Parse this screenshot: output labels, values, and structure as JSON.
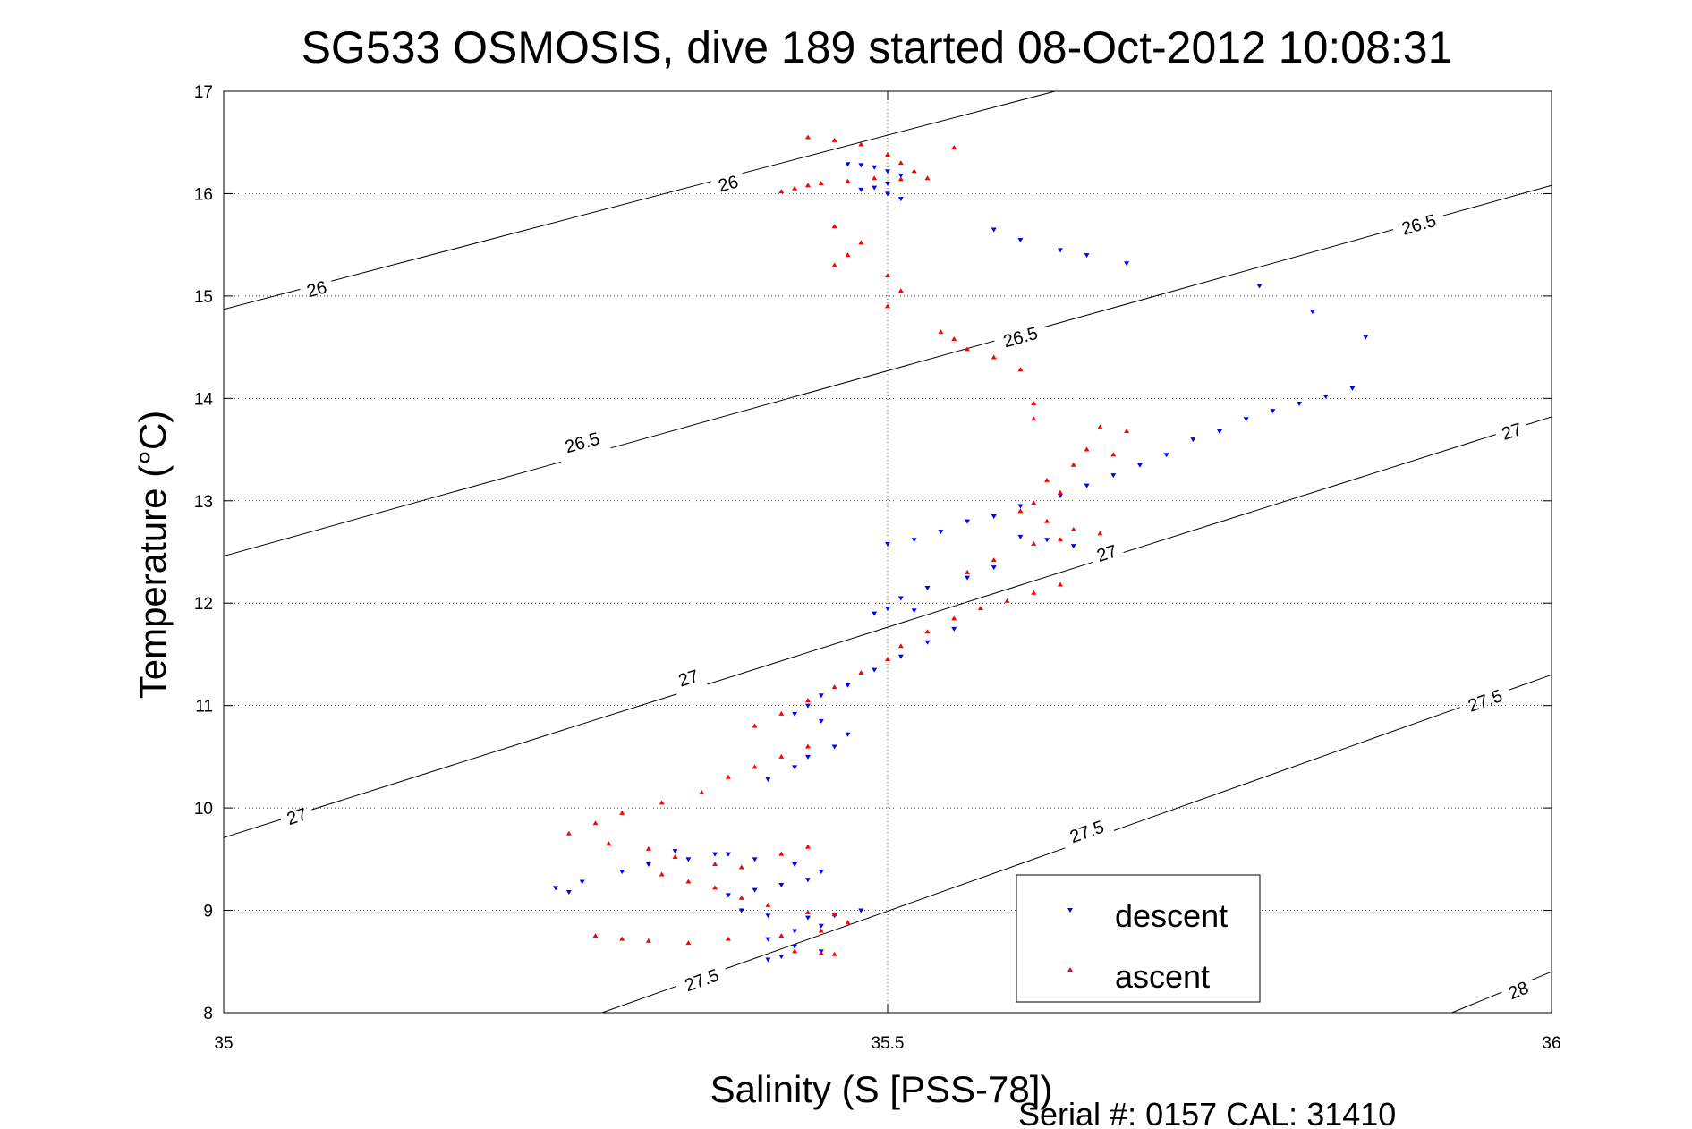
{
  "chart_data": {
    "type": "scatter",
    "title": "SG533 OSMOSIS, dive 189 started 08-Oct-2012 10:08:31",
    "xlabel": "Salinity (S [PSS-78])",
    "ylabel": "Temperature (°C)",
    "xlim": [
      35,
      36
    ],
    "ylim": [
      8,
      17
    ],
    "x_ticks": [
      35,
      35.5,
      36
    ],
    "x_tick_labels": [
      "35",
      "35.5",
      "36"
    ],
    "y_ticks": [
      8,
      9,
      10,
      11,
      12,
      13,
      14,
      15,
      16,
      17
    ],
    "y_tick_labels": [
      "8",
      "9",
      "10",
      "11",
      "12",
      "13",
      "14",
      "15",
      "16",
      "17"
    ],
    "grid": true,
    "grid_style": "dotted",
    "legend_position": "bottom-right",
    "footer": "Serial #: 0157  CAL: 31410",
    "density_contours": [
      {
        "value": 26.0,
        "points": [
          [
            35,
            14.87
          ],
          [
            35.626,
            17.0
          ]
        ],
        "labels": [
          {
            "text": "26",
            "x": 35.07,
            "y": 15.07
          },
          {
            "text": "26",
            "x": 35.38,
            "y": 16.1
          }
        ]
      },
      {
        "value": 26.5,
        "points": [
          [
            35,
            12.46
          ],
          [
            36,
            16.08
          ]
        ],
        "labels": [
          {
            "text": "26.5",
            "x": 35.27,
            "y": 13.57
          },
          {
            "text": "26.5",
            "x": 35.6,
            "y": 14.6
          },
          {
            "text": "26.5",
            "x": 35.9,
            "y": 15.7
          }
        ]
      },
      {
        "value": 27.0,
        "points": [
          [
            35,
            9.71
          ],
          [
            36,
            13.82
          ]
        ],
        "labels": [
          {
            "text": "27",
            "x": 35.055,
            "y": 9.92
          },
          {
            "text": "27",
            "x": 35.35,
            "y": 11.27
          },
          {
            "text": "27",
            "x": 35.665,
            "y": 12.49
          },
          {
            "text": "27",
            "x": 35.97,
            "y": 13.68
          }
        ]
      },
      {
        "value": 27.5,
        "points": [
          [
            35.285,
            8.0
          ],
          [
            36,
            11.3
          ]
        ],
        "labels": [
          {
            "text": "27.5",
            "x": 35.36,
            "y": 8.32
          },
          {
            "text": "27.5",
            "x": 35.65,
            "y": 9.77
          },
          {
            "text": "27.5",
            "x": 35.95,
            "y": 11.05
          }
        ]
      },
      {
        "value": 28.0,
        "points": [
          [
            35.925,
            8.0
          ],
          [
            36,
            8.4
          ]
        ],
        "labels": [
          {
            "text": "28",
            "x": 35.975,
            "y": 8.22
          }
        ]
      }
    ],
    "series": [
      {
        "name": "descent",
        "color": "#0000ff",
        "marker": "triangle-down",
        "points": [
          [
            35.47,
            16.29
          ],
          [
            35.48,
            16.28
          ],
          [
            35.49,
            16.26
          ],
          [
            35.5,
            16.22
          ],
          [
            35.51,
            16.18
          ],
          [
            35.5,
            16.1
          ],
          [
            35.49,
            16.06
          ],
          [
            35.48,
            16.04
          ],
          [
            35.5,
            16.0
          ],
          [
            35.51,
            15.95
          ],
          [
            35.58,
            15.65
          ],
          [
            35.6,
            15.55
          ],
          [
            35.63,
            15.45
          ],
          [
            35.65,
            15.4
          ],
          [
            35.68,
            15.32
          ],
          [
            35.78,
            15.1
          ],
          [
            35.82,
            14.85
          ],
          [
            35.86,
            14.6
          ],
          [
            35.85,
            14.1
          ],
          [
            35.83,
            14.02
          ],
          [
            35.81,
            13.95
          ],
          [
            35.79,
            13.88
          ],
          [
            35.77,
            13.8
          ],
          [
            35.75,
            13.68
          ],
          [
            35.73,
            13.6
          ],
          [
            35.71,
            13.45
          ],
          [
            35.69,
            13.35
          ],
          [
            35.67,
            13.25
          ],
          [
            35.65,
            13.15
          ],
          [
            35.63,
            13.05
          ],
          [
            35.6,
            12.95
          ],
          [
            35.58,
            12.85
          ],
          [
            35.56,
            12.8
          ],
          [
            35.54,
            12.7
          ],
          [
            35.52,
            12.62
          ],
          [
            35.5,
            12.58
          ],
          [
            35.6,
            12.65
          ],
          [
            35.62,
            12.62
          ],
          [
            35.64,
            12.56
          ],
          [
            35.58,
            12.35
          ],
          [
            35.56,
            12.25
          ],
          [
            35.53,
            12.15
          ],
          [
            35.51,
            12.05
          ],
          [
            35.5,
            11.95
          ],
          [
            35.49,
            11.9
          ],
          [
            35.52,
            11.93
          ],
          [
            35.55,
            11.75
          ],
          [
            35.53,
            11.62
          ],
          [
            35.51,
            11.48
          ],
          [
            35.49,
            11.35
          ],
          [
            35.47,
            11.2
          ],
          [
            35.45,
            11.1
          ],
          [
            35.44,
            11.0
          ],
          [
            35.43,
            10.92
          ],
          [
            35.45,
            10.85
          ],
          [
            35.47,
            10.72
          ],
          [
            35.46,
            10.6
          ],
          [
            35.44,
            10.5
          ],
          [
            35.43,
            10.4
          ],
          [
            35.41,
            10.28
          ],
          [
            35.38,
            9.55
          ],
          [
            35.35,
            9.5
          ],
          [
            35.32,
            9.45
          ],
          [
            35.3,
            9.38
          ],
          [
            35.27,
            9.28
          ],
          [
            35.25,
            9.22
          ],
          [
            35.26,
            9.18
          ],
          [
            35.34,
            9.58
          ],
          [
            35.37,
            9.55
          ],
          [
            35.4,
            9.5
          ],
          [
            35.43,
            9.45
          ],
          [
            35.45,
            9.38
          ],
          [
            35.44,
            9.3
          ],
          [
            35.42,
            9.25
          ],
          [
            35.4,
            9.2
          ],
          [
            35.38,
            9.15
          ],
          [
            35.39,
            9.0
          ],
          [
            35.41,
            8.95
          ],
          [
            35.44,
            8.93
          ],
          [
            35.46,
            8.95
          ],
          [
            35.48,
            9.0
          ],
          [
            35.45,
            8.85
          ],
          [
            35.43,
            8.8
          ],
          [
            35.41,
            8.72
          ],
          [
            35.43,
            8.65
          ],
          [
            35.45,
            8.6
          ],
          [
            35.42,
            8.55
          ],
          [
            35.41,
            8.52
          ]
        ]
      },
      {
        "name": "ascent",
        "color": "#ff0000",
        "marker": "triangle-up",
        "points": [
          [
            35.44,
            16.55
          ],
          [
            35.46,
            16.52
          ],
          [
            35.48,
            16.48
          ],
          [
            35.5,
            16.38
          ],
          [
            35.51,
            16.3
          ],
          [
            35.52,
            16.22
          ],
          [
            35.53,
            16.15
          ],
          [
            35.51,
            16.14
          ],
          [
            35.49,
            16.15
          ],
          [
            35.47,
            16.12
          ],
          [
            35.45,
            16.1
          ],
          [
            35.44,
            16.08
          ],
          [
            35.43,
            16.05
          ],
          [
            35.42,
            16.02
          ],
          [
            35.55,
            16.45
          ],
          [
            35.46,
            15.68
          ],
          [
            35.48,
            15.52
          ],
          [
            35.47,
            15.4
          ],
          [
            35.46,
            15.3
          ],
          [
            35.5,
            15.2
          ],
          [
            35.51,
            15.05
          ],
          [
            35.5,
            14.9
          ],
          [
            35.54,
            14.65
          ],
          [
            35.55,
            14.58
          ],
          [
            35.56,
            14.48
          ],
          [
            35.58,
            14.4
          ],
          [
            35.6,
            14.28
          ],
          [
            35.61,
            13.95
          ],
          [
            35.61,
            13.8
          ],
          [
            35.66,
            13.72
          ],
          [
            35.68,
            13.68
          ],
          [
            35.65,
            13.5
          ],
          [
            35.67,
            13.45
          ],
          [
            35.64,
            13.35
          ],
          [
            35.62,
            13.2
          ],
          [
            35.63,
            13.08
          ],
          [
            35.61,
            12.98
          ],
          [
            35.6,
            12.9
          ],
          [
            35.62,
            12.8
          ],
          [
            35.64,
            12.72
          ],
          [
            35.66,
            12.68
          ],
          [
            35.63,
            12.62
          ],
          [
            35.61,
            12.58
          ],
          [
            35.58,
            12.42
          ],
          [
            35.56,
            12.3
          ],
          [
            35.63,
            12.18
          ],
          [
            35.61,
            12.1
          ],
          [
            35.59,
            12.02
          ],
          [
            35.57,
            11.95
          ],
          [
            35.55,
            11.85
          ],
          [
            35.53,
            11.72
          ],
          [
            35.51,
            11.58
          ],
          [
            35.5,
            11.45
          ],
          [
            35.48,
            11.32
          ],
          [
            35.46,
            11.18
          ],
          [
            35.44,
            11.05
          ],
          [
            35.42,
            10.92
          ],
          [
            35.4,
            10.8
          ],
          [
            35.44,
            10.6
          ],
          [
            35.42,
            10.5
          ],
          [
            35.4,
            10.4
          ],
          [
            35.38,
            10.3
          ],
          [
            35.36,
            10.15
          ],
          [
            35.33,
            10.05
          ],
          [
            35.3,
            9.95
          ],
          [
            35.28,
            9.85
          ],
          [
            35.26,
            9.75
          ],
          [
            35.29,
            9.65
          ],
          [
            35.32,
            9.6
          ],
          [
            35.34,
            9.52
          ],
          [
            35.37,
            9.45
          ],
          [
            35.39,
            9.42
          ],
          [
            35.42,
            9.55
          ],
          [
            35.44,
            9.62
          ],
          [
            35.33,
            9.35
          ],
          [
            35.35,
            9.28
          ],
          [
            35.37,
            9.22
          ],
          [
            35.39,
            9.12
          ],
          [
            35.41,
            9.05
          ],
          [
            35.44,
            8.98
          ],
          [
            35.46,
            8.96
          ],
          [
            35.47,
            8.88
          ],
          [
            35.45,
            8.8
          ],
          [
            35.42,
            8.75
          ],
          [
            35.38,
            8.72
          ],
          [
            35.35,
            8.68
          ],
          [
            35.32,
            8.7
          ],
          [
            35.3,
            8.72
          ],
          [
            35.28,
            8.75
          ],
          [
            35.43,
            8.6
          ],
          [
            35.45,
            8.58
          ],
          [
            35.46,
            8.57
          ]
        ]
      }
    ]
  }
}
